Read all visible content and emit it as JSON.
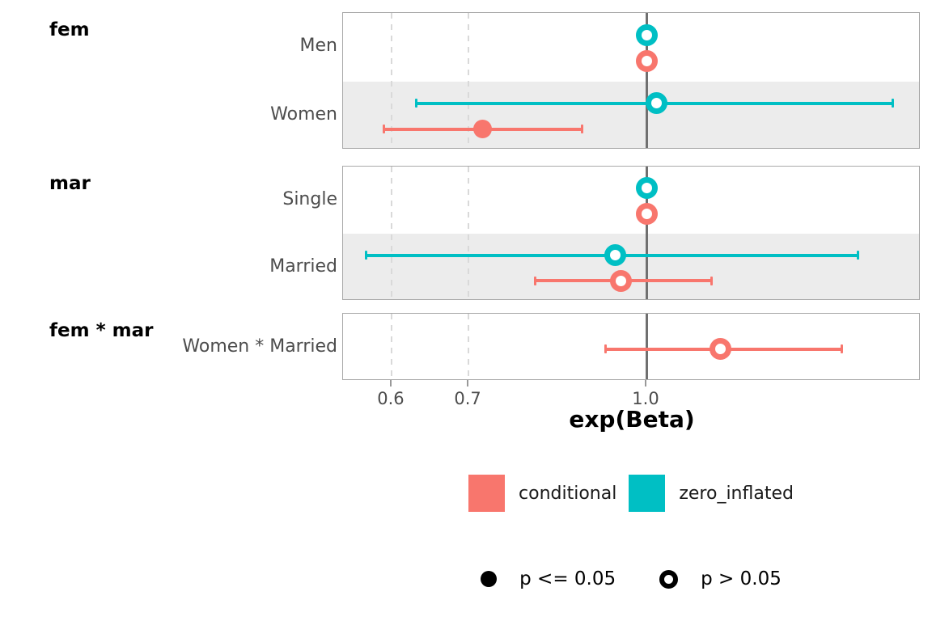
{
  "axis": {
    "label": "exp(Beta)",
    "tick_labels": [
      "0.6",
      "0.7",
      "1.0"
    ]
  },
  "legend": {
    "color_items": [
      {
        "label": "conditional",
        "color": "#F8766D",
        "icon": "square-swatch-icon"
      },
      {
        "label": "zero_inflated",
        "color": "#00BFC4",
        "icon": "square-swatch-icon"
      }
    ],
    "shape_items": [
      {
        "label": "p <= 0.05",
        "shape": "filled-circle"
      },
      {
        "label": "p > 0.05",
        "shape": "open-circle"
      }
    ]
  },
  "colors": {
    "conditional": "#F8766D",
    "zero_inflated": "#00BFC4",
    "reference_line": "#707070",
    "gridline": "#D9D9D9",
    "stripe": "#ECECEC",
    "panel_border": "#A9A9A9",
    "tick_mark": "#999999",
    "text_muted": "#4D4D4D",
    "text_dark": "#000000"
  },
  "chart_data": {
    "type": "scatter",
    "subtype": "forest-coefficient-pointrange",
    "x_scale": "log10",
    "xlabel": "exp(Beta)",
    "x_ticks": [
      0.6,
      0.7,
      1.0
    ],
    "x_range": [
      0.545,
      1.73
    ],
    "reference_line": 1.0,
    "dashed_gridlines": [
      0.6,
      0.7
    ],
    "grid": "dashed-vertical-only",
    "legend_position": "bottom-center",
    "series_order_top_to_bottom": [
      "zero_inflated",
      "conditional"
    ],
    "facets": [
      {
        "label": "fem",
        "rows": [
          {
            "label": "Men",
            "striped": false,
            "points": [
              {
                "series": "zero_inflated",
                "estimate": 1.0,
                "ci_low": null,
                "ci_high": null,
                "significant": false
              },
              {
                "series": "conditional",
                "estimate": 1.0,
                "ci_low": null,
                "ci_high": null,
                "significant": false
              }
            ]
          },
          {
            "label": "Women",
            "striped": true,
            "points": [
              {
                "series": "zero_inflated",
                "estimate": 1.02,
                "ci_low": 0.63,
                "ci_high": 1.64,
                "significant": false
              },
              {
                "series": "conditional",
                "estimate": 0.72,
                "ci_low": 0.59,
                "ci_high": 0.88,
                "significant": true
              }
            ]
          }
        ]
      },
      {
        "label": "mar",
        "rows": [
          {
            "label": "Single",
            "striped": false,
            "points": [
              {
                "series": "zero_inflated",
                "estimate": 1.0,
                "ci_low": null,
                "ci_high": null,
                "significant": false
              },
              {
                "series": "conditional",
                "estimate": 1.0,
                "ci_low": null,
                "ci_high": null,
                "significant": false
              }
            ]
          },
          {
            "label": "Married",
            "striped": true,
            "points": [
              {
                "series": "zero_inflated",
                "estimate": 0.94,
                "ci_low": 0.57,
                "ci_high": 1.53,
                "significant": false
              },
              {
                "series": "conditional",
                "estimate": 0.95,
                "ci_low": 0.8,
                "ci_high": 1.14,
                "significant": false
              }
            ]
          }
        ]
      },
      {
        "label": "fem * mar",
        "rows": [
          {
            "label": "Women * Married",
            "striped": false,
            "points": [
              {
                "series": "conditional",
                "estimate": 1.16,
                "ci_low": 0.92,
                "ci_high": 1.48,
                "significant": false
              }
            ]
          }
        ]
      }
    ]
  }
}
